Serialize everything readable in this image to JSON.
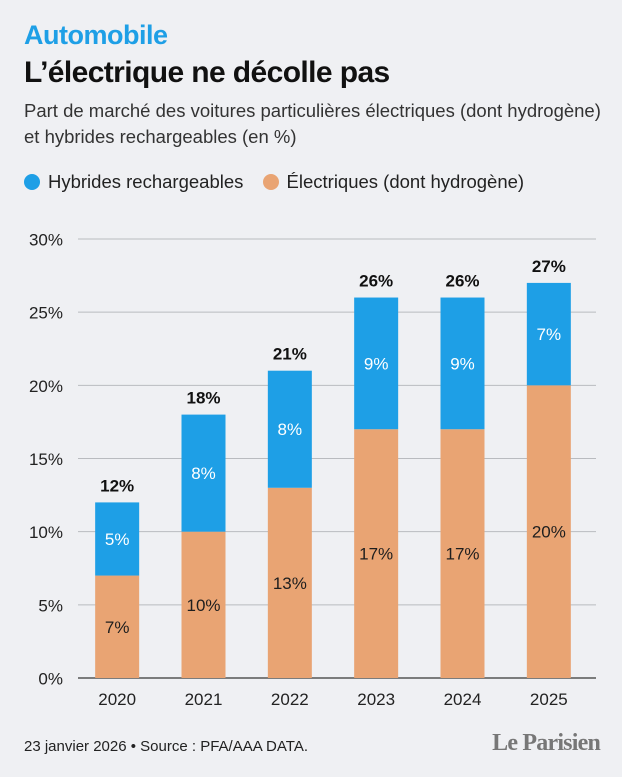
{
  "header": {
    "kicker": "Automobile",
    "title": "L’électrique ne décolle pas",
    "subtitle": "Part de marché des voitures particulières électriques (dont hydrogène) et hybrides rechargeables (en %)"
  },
  "legend": {
    "hybrid_label": "Hybrides rechargeables",
    "electric_label": "Électriques (dont hydrogène)"
  },
  "footer": {
    "source": "23 janvier 2026 • Source : PFA/AAA DATA.",
    "logo": "Le Parisien"
  },
  "colors": {
    "hybrid": "#1e9fe6",
    "electric": "#e9a473",
    "kicker": "#1e9fe6"
  },
  "chart_data": {
    "type": "bar",
    "stacked": true,
    "categories": [
      "2020",
      "2021",
      "2022",
      "2023",
      "2024",
      "2025"
    ],
    "series": [
      {
        "name": "Électriques (dont hydrogène)",
        "values": [
          7,
          10,
          13,
          17,
          17,
          20
        ],
        "labels": [
          "7%",
          "10%",
          "13%",
          "17%",
          "17%",
          "20%"
        ]
      },
      {
        "name": "Hybrides rechargeables",
        "values": [
          5,
          8,
          8,
          9,
          9,
          7
        ],
        "labels": [
          "5%",
          "8%",
          "8%",
          "9%",
          "9%",
          "7%"
        ]
      }
    ],
    "totals": [
      12,
      18,
      21,
      26,
      26,
      27
    ],
    "total_labels": [
      "12%",
      "18%",
      "21%",
      "26%",
      "26%",
      "27%"
    ],
    "ylim": [
      0,
      30
    ],
    "yticks": [
      "0%",
      "5%",
      "10%",
      "15%",
      "20%",
      "25%",
      "30%"
    ],
    "grid": true,
    "legend_position": "top-left"
  }
}
